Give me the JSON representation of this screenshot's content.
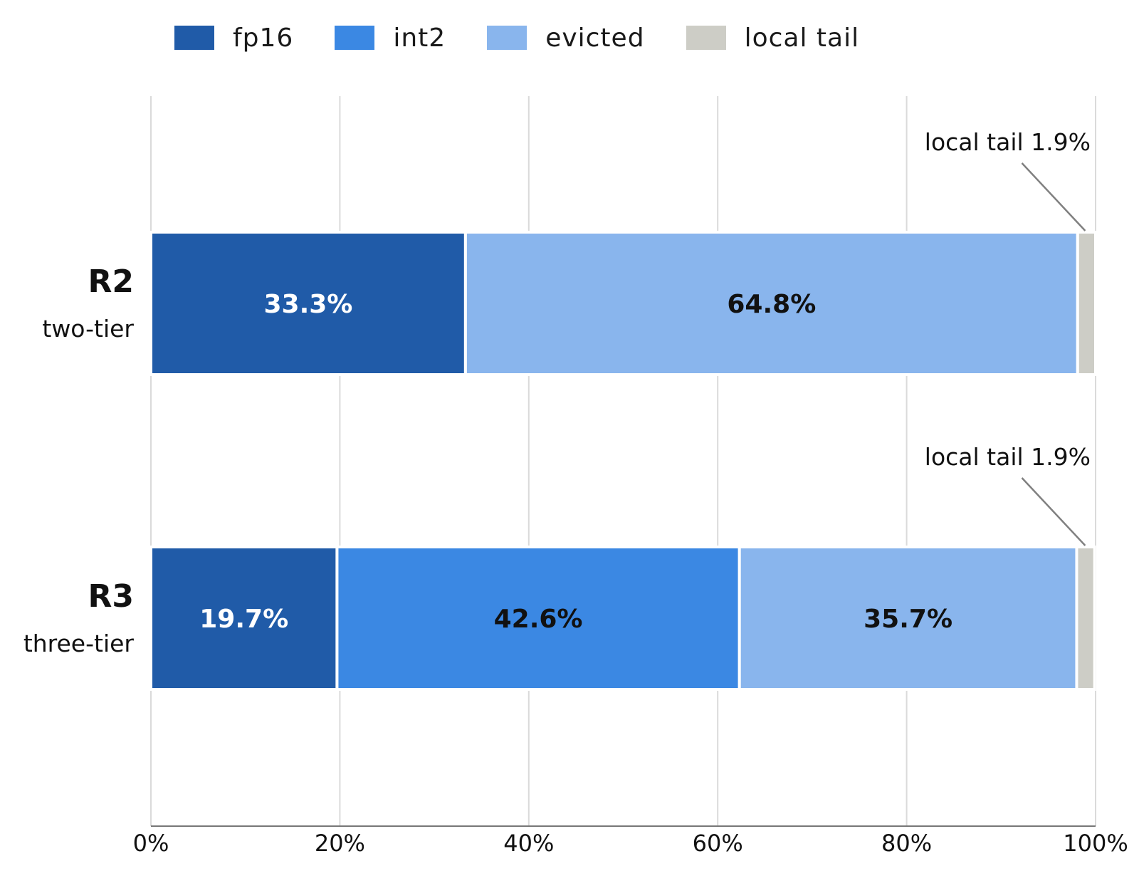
{
  "chart_data": {
    "type": "bar",
    "orientation": "horizontal",
    "stacked": true,
    "xlim": [
      0,
      100
    ],
    "x_ticks": [
      "0%",
      "20%",
      "40%",
      "60%",
      "80%",
      "100%"
    ],
    "legend_position": "top",
    "grid": "vertical",
    "categories": [
      {
        "title": "R2",
        "subtitle": "two-tier"
      },
      {
        "title": "R3",
        "subtitle": "three-tier"
      }
    ],
    "series": [
      {
        "name": "fp16",
        "color": "#205ba8",
        "values": [
          33.3,
          19.7
        ],
        "labels": [
          "33.3%",
          "19.7%"
        ],
        "label_color": "#ffffff"
      },
      {
        "name": "int2",
        "color": "#3b88e3",
        "values": [
          0,
          42.6
        ],
        "labels": [
          "",
          "42.6%"
        ],
        "label_color": "#111111"
      },
      {
        "name": "evicted",
        "color": "#89b5ed",
        "values": [
          64.8,
          35.7
        ],
        "labels": [
          "64.8%",
          "35.7%"
        ],
        "label_color": "#111111"
      },
      {
        "name": "local tail",
        "color": "#cdcdc6",
        "values": [
          1.9,
          1.9
        ],
        "labels": [
          "",
          ""
        ],
        "label_color": "#111111"
      }
    ],
    "annotations": [
      {
        "text": "local tail  1.9%",
        "row": 0
      },
      {
        "text": "local tail  1.9%",
        "row": 1
      }
    ]
  }
}
